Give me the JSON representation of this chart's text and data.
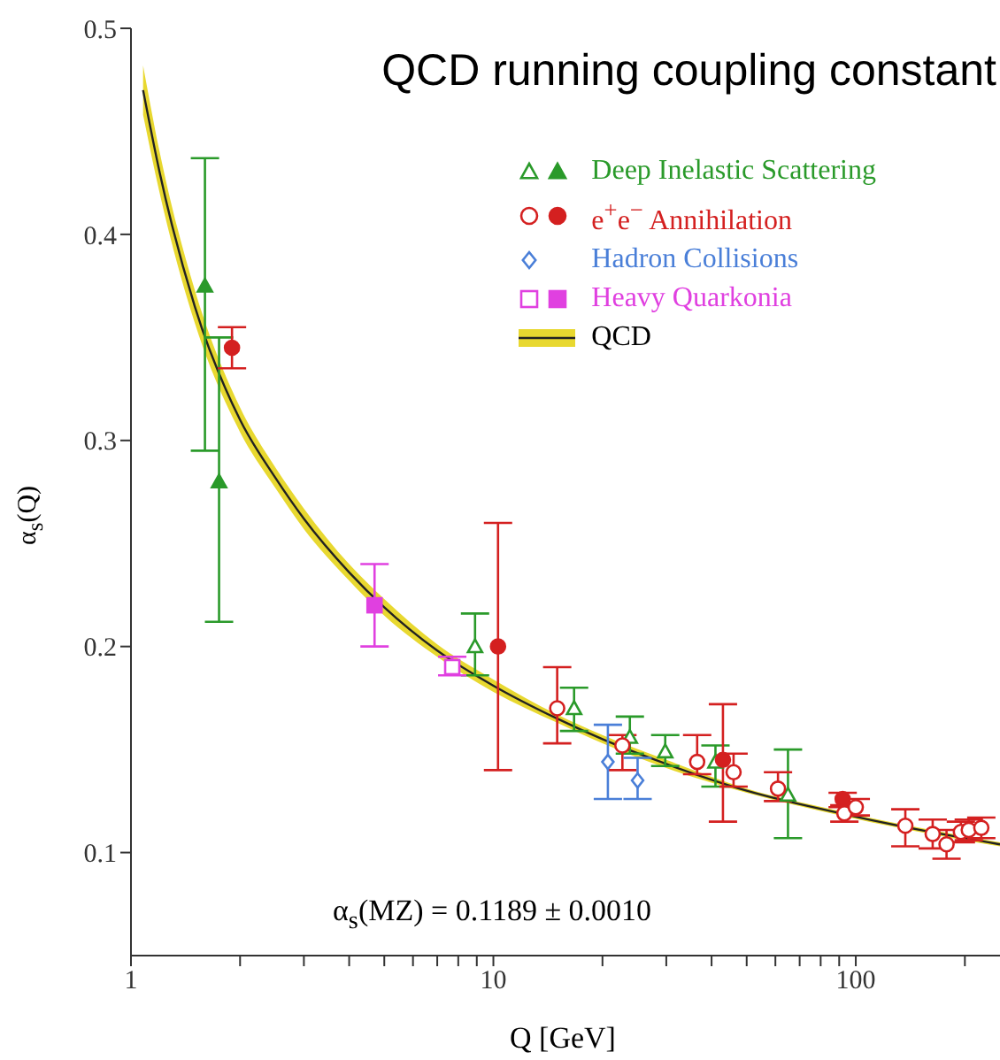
{
  "chart_data": {
    "type": "scatter",
    "title": "QCD running coupling constant",
    "xlabel": "Q [GeV]",
    "ylabel": "α$_{s}$(Q)",
    "annotations": [
      "α$_{s}$(MZ) = 0.1189 ± 0.0010"
    ],
    "log": "x",
    "xlim": [
      1,
      250
    ],
    "ylim": [
      0.05,
      0.5
    ],
    "xticks": [
      1,
      {
        "value": 2,
        "label": null
      },
      {
        "value": 3,
        "label": null
      },
      {
        "value": 4,
        "label": null
      },
      {
        "value": 5,
        "label": null
      },
      {
        "value": 6,
        "label": null
      },
      {
        "value": 7,
        "label": null
      },
      {
        "value": 8,
        "label": null
      },
      {
        "value": 9,
        "label": null
      },
      10,
      {
        "value": 20,
        "label": null
      },
      {
        "value": 30,
        "label": null
      },
      {
        "value": 40,
        "label": null
      },
      {
        "value": 50,
        "label": null
      },
      {
        "value": 60,
        "label": null
      },
      {
        "value": 70,
        "label": null
      },
      {
        "value": 80,
        "label": null
      },
      {
        "value": 90,
        "label": null
      },
      100,
      {
        "value": 200,
        "label": null
      }
    ],
    "yticks": [
      0.1,
      0.2,
      0.3,
      0.4,
      0.5
    ],
    "legend": "top right",
    "series": [
      {
        "type": "line",
        "name": "QCD",
        "color": "#222222",
        "x": [
          1.08,
          1.2,
          1.5,
          2,
          2.5,
          3,
          4,
          5,
          7,
          10,
          15,
          20,
          30,
          50,
          91,
          150,
          250
        ],
        "values": [
          0.47,
          0.43,
          0.365,
          0.31,
          0.282,
          0.262,
          0.236,
          0.219,
          0.198,
          0.181,
          0.165,
          0.155,
          0.143,
          0.13,
          0.119,
          0.111,
          0.104
        ],
        "lower": [
          0.458,
          0.42,
          0.357,
          0.304,
          0.277,
          0.257,
          0.232,
          0.215,
          0.195,
          0.178,
          0.163,
          0.153,
          0.141,
          0.129,
          0.118,
          0.11,
          0.103
        ],
        "upper": [
          0.482,
          0.44,
          0.373,
          0.316,
          0.287,
          0.267,
          0.24,
          0.223,
          0.201,
          0.184,
          0.167,
          0.157,
          0.145,
          0.131,
          0.12,
          0.112,
          0.105
        ]
      },
      {
        "name": "Deep Inelastic Scattering",
        "color": "#2a9a2a",
        "marker": "triangle",
        "x": [
          8.9,
          16.7,
          23.8,
          29.8,
          41,
          65
        ],
        "values": [
          0.2,
          0.17,
          0.156,
          0.149,
          0.144,
          0.128
        ],
        "errors": [
          [
            0.186,
            0.216
          ],
          [
            0.159,
            0.18
          ],
          [
            0.148,
            0.166
          ],
          [
            0.142,
            0.157
          ],
          [
            0.132,
            0.152
          ],
          [
            0.107,
            0.15
          ]
        ]
      },
      {
        "color": "#2a9a2a",
        "marker": "triangle",
        "x": [
          1.6,
          1.75
        ],
        "values": [
          0.375,
          0.28
        ],
        "errors": [
          [
            0.295,
            0.437
          ],
          [
            0.212,
            0.35
          ]
        ]
      },
      {
        "name": "e$^{+}$e$^{−}$ Annihilation",
        "color": "#d42020",
        "marker": "circle",
        "x": [
          15,
          22.7,
          36.5,
          46,
          61,
          93,
          100,
          137,
          163,
          178,
          195,
          205,
          222
        ],
        "values": [
          0.17,
          0.152,
          0.144,
          0.139,
          0.131,
          0.119,
          0.122,
          0.113,
          0.109,
          0.104,
          0.11,
          0.111,
          0.112
        ],
        "errors": [
          [
            0.153,
            0.19
          ],
          [
            0.14,
            0.157
          ],
          [
            0.138,
            0.157
          ],
          [
            0.132,
            0.148
          ],
          [
            0.125,
            0.139
          ],
          [
            0.115,
            0.123
          ],
          [
            0.118,
            0.126
          ],
          [
            0.103,
            0.121
          ],
          [
            0.102,
            0.116
          ],
          [
            0.097,
            0.111
          ],
          [
            0.105,
            0.115
          ],
          [
            0.106,
            0.116
          ],
          [
            0.107,
            0.117
          ]
        ]
      },
      {
        "color": "#d42020",
        "marker": "circle",
        "x": [
          1.9,
          10.3,
          43,
          92
        ],
        "values": [
          0.345,
          0.2,
          0.145,
          0.126
        ],
        "errors": [
          [
            0.335,
            0.355
          ],
          [
            0.14,
            0.26
          ],
          [
            0.115,
            0.172
          ],
          [
            0.122,
            0.129
          ]
        ]
      },
      {
        "name": "Hadron Collisions",
        "color": "#4a7fd8",
        "marker": "diamond",
        "x": [
          20.7,
          25
        ],
        "values": [
          0.144,
          0.135
        ],
        "errors": [
          [
            0.126,
            0.162
          ],
          [
            0.126,
            0.146
          ]
        ]
      },
      {
        "name": "Heavy Quarkonia",
        "color": "#e040e0",
        "marker": "square",
        "x": [
          7.7
        ],
        "values": [
          0.19
        ],
        "errors": [
          [
            0.186,
            0.195
          ]
        ]
      },
      {
        "color": "#e040e0",
        "marker": "square",
        "x": [
          4.7
        ],
        "values": [
          0.22
        ],
        "errors": [
          [
            0.2,
            0.24
          ]
        ]
      }
    ]
  }
}
